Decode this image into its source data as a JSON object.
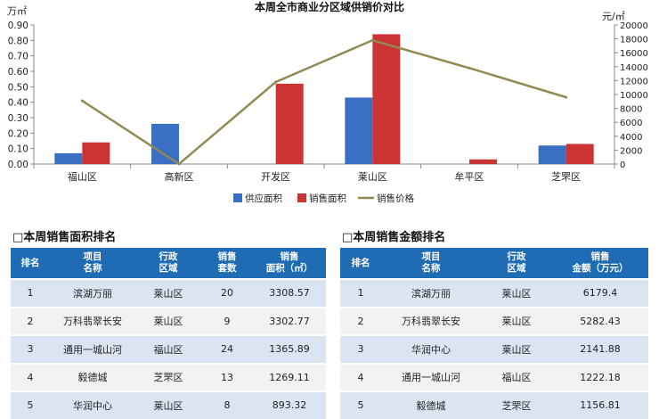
{
  "chart_data": {
    "type": "bar",
    "title": "本周全市商业分区域供销价对比",
    "left_unit": "万㎡",
    "right_unit": "元/㎡",
    "categories": [
      "福山区",
      "高新区",
      "开发区",
      "莱山区",
      "牟平区",
      "芝罘区"
    ],
    "series": [
      {
        "name": "供应面积",
        "kind": "bar",
        "axis": "left",
        "color": "#3a6fc4",
        "values": [
          0.07,
          0.26,
          0,
          0.43,
          0,
          0.12
        ]
      },
      {
        "name": "销售面积",
        "kind": "bar",
        "axis": "left",
        "color": "#cc3333",
        "values": [
          0.14,
          0,
          0.52,
          0.84,
          0.03,
          0.13
        ]
      },
      {
        "name": "销售价格",
        "kind": "line",
        "axis": "right",
        "color": "#938953",
        "values": [
          9100,
          0,
          11800,
          17800,
          13800,
          9600
        ]
      }
    ],
    "ylim": [
      0,
      0.9
    ],
    "y_ticks": [
      "0.00",
      "0.10",
      "0.20",
      "0.30",
      "0.40",
      "0.50",
      "0.60",
      "0.70",
      "0.80",
      "0.90"
    ],
    "y2lim": [
      0,
      20000
    ],
    "y2_ticks": [
      "0",
      "2000",
      "4000",
      "6000",
      "8000",
      "10000",
      "12000",
      "14000",
      "16000",
      "18000",
      "20000"
    ],
    "legend_position": "bottom"
  },
  "area_table": {
    "title": "本周销售面积排名",
    "headers": [
      [
        "排名"
      ],
      [
        "项目",
        "名称"
      ],
      [
        "行政",
        "区域"
      ],
      [
        "销售",
        "套数"
      ],
      [
        "销售",
        "面积（㎡）"
      ]
    ],
    "rows": [
      [
        "1",
        "滨湖万丽",
        "莱山区",
        "20",
        "3308.57"
      ],
      [
        "2",
        "万科翡翠长安",
        "莱山区",
        "9",
        "3302.77"
      ],
      [
        "3",
        "通用一城山河",
        "福山区",
        "24",
        "1365.89"
      ],
      [
        "4",
        "毅德城",
        "芝罘区",
        "13",
        "1269.11"
      ],
      [
        "5",
        "华润中心",
        "莱山区",
        "8",
        "893.32"
      ]
    ]
  },
  "amount_table": {
    "title": "本周销售金额排名",
    "headers": [
      [
        "排名"
      ],
      [
        "项目",
        "名称"
      ],
      [
        "行政",
        "区域"
      ],
      [
        "销售",
        "金额（万元）"
      ]
    ],
    "rows": [
      [
        "1",
        "滨湖万丽",
        "莱山区",
        "6179.4"
      ],
      [
        "2",
        "万科翡翠长安",
        "莱山区",
        "5282.43"
      ],
      [
        "3",
        "华润中心",
        "莱山区",
        "2141.88"
      ],
      [
        "4",
        "通用一城山河",
        "福山区",
        "1222.18"
      ],
      [
        "5",
        "毅德城",
        "芝罘区",
        "1156.81"
      ]
    ]
  }
}
